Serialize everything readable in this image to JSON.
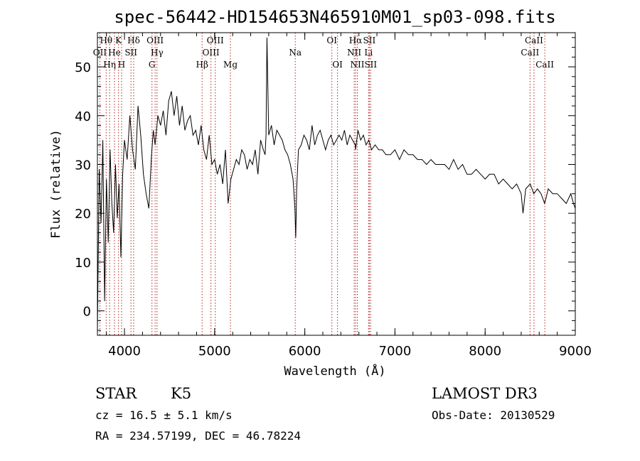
{
  "chart_data": {
    "type": "line",
    "title": "spec-56442-HD154653N465910M01_sp03-098.fits",
    "xlabel": "Wavelength (Å)",
    "ylabel": "Flux (relative)",
    "xlim": [
      3700,
      9000
    ],
    "ylim": [
      -5,
      57
    ],
    "xticks": [
      4000,
      5000,
      6000,
      7000,
      8000,
      9000
    ],
    "yticks": [
      0,
      10,
      20,
      30,
      40,
      50
    ],
    "line_color": "#000000",
    "marker_color": "#b22222",
    "series": [
      {
        "name": "flux",
        "x": [
          3700,
          3720,
          3740,
          3760,
          3780,
          3800,
          3820,
          3840,
          3860,
          3880,
          3900,
          3920,
          3940,
          3960,
          3980,
          4000,
          4030,
          4060,
          4090,
          4120,
          4150,
          4180,
          4210,
          4240,
          4270,
          4300,
          4320,
          4340,
          4370,
          4400,
          4430,
          4460,
          4490,
          4520,
          4550,
          4580,
          4610,
          4640,
          4670,
          4700,
          4730,
          4760,
          4790,
          4820,
          4850,
          4880,
          4910,
          4940,
          4970,
          5000,
          5030,
          5060,
          5090,
          5120,
          5150,
          5180,
          5210,
          5240,
          5270,
          5300,
          5330,
          5360,
          5390,
          5420,
          5450,
          5480,
          5510,
          5540,
          5560,
          5570,
          5580,
          5600,
          5630,
          5660,
          5690,
          5720,
          5750,
          5780,
          5810,
          5840,
          5870,
          5890,
          5900,
          5910,
          5930,
          5960,
          5990,
          6020,
          6050,
          6080,
          6110,
          6140,
          6170,
          6200,
          6230,
          6260,
          6290,
          6320,
          6350,
          6380,
          6410,
          6440,
          6470,
          6500,
          6530,
          6560,
          6563,
          6590,
          6620,
          6650,
          6680,
          6710,
          6740,
          6780,
          6820,
          6860,
          6900,
          6950,
          7000,
          7050,
          7100,
          7150,
          7200,
          7250,
          7300,
          7350,
          7400,
          7450,
          7500,
          7550,
          7600,
          7650,
          7700,
          7750,
          7800,
          7850,
          7900,
          7950,
          8000,
          8050,
          8100,
          8150,
          8200,
          8250,
          8300,
          8350,
          8400,
          8420,
          8450,
          8500,
          8540,
          8580,
          8620,
          8660,
          8700,
          8750,
          8800,
          8850,
          8900,
          8950,
          8980,
          9000
        ],
        "y": [
          -4,
          29,
          18,
          35,
          2,
          27,
          14,
          33,
          22,
          16,
          30,
          19,
          26,
          11,
          28,
          35,
          31,
          40,
          33,
          29,
          42,
          36,
          28,
          24,
          21,
          32,
          37,
          34,
          40,
          38,
          41,
          36,
          43,
          45,
          40,
          44,
          38,
          42,
          37,
          39,
          40,
          36,
          37,
          34,
          38,
          33,
          31,
          36,
          30,
          31,
          28,
          30,
          26,
          33,
          22,
          27,
          29,
          31,
          30,
          33,
          32,
          29,
          31,
          30,
          33,
          28,
          35,
          33,
          32,
          36,
          56,
          36,
          38,
          34,
          37,
          36,
          35,
          33,
          32,
          30,
          27,
          21,
          15,
          25,
          33,
          34,
          36,
          35,
          33,
          38,
          34,
          36,
          37,
          35,
          33,
          35,
          36,
          34,
          35,
          36,
          35,
          37,
          34,
          36,
          35,
          34,
          33,
          37,
          35,
          36,
          34,
          35,
          33,
          34,
          33,
          33,
          32,
          32,
          33,
          31,
          33,
          32,
          32,
          31,
          31,
          30,
          31,
          30,
          30,
          30,
          29,
          31,
          29,
          30,
          28,
          28,
          29,
          28,
          27,
          28,
          28,
          26,
          27,
          26,
          25,
          26,
          24,
          20,
          25,
          26,
          24,
          25,
          24,
          22,
          25,
          24,
          24,
          23,
          22,
          24,
          22,
          21
        ]
      }
    ],
    "lines": [
      {
        "label": "OII",
        "wave": 3727,
        "pos": "top",
        "row": 2
      },
      {
        "label": "Hθ",
        "wave": 3797,
        "pos": "top",
        "row": 1
      },
      {
        "label": "Hη",
        "wave": 3835,
        "pos": "top",
        "row": 3
      },
      {
        "label": "He",
        "wave": 3889,
        "pos": "top",
        "row": 2
      },
      {
        "label": "K",
        "wave": 3934,
        "pos": "top",
        "row": 1
      },
      {
        "label": "H",
        "wave": 3968,
        "pos": "top",
        "row": 3
      },
      {
        "label": "SII",
        "wave": 4072,
        "pos": "top",
        "row": 2
      },
      {
        "label": "Hδ",
        "wave": 4102,
        "pos": "top",
        "row": 1
      },
      {
        "label": "G",
        "wave": 4305,
        "pos": "top",
        "row": 3
      },
      {
        "label": "OIII",
        "wave": 4340,
        "pos": "top",
        "row": 1
      },
      {
        "label": "Hγ",
        "wave": 4361,
        "pos": "top",
        "row": 2
      },
      {
        "label": "Hβ",
        "wave": 4861,
        "pos": "top",
        "row": 3
      },
      {
        "label": "OIII",
        "wave": 4959,
        "pos": "top",
        "row": 2
      },
      {
        "label": "OIII",
        "wave": 5007,
        "pos": "top",
        "row": 1
      },
      {
        "label": "Mg",
        "wave": 5175,
        "pos": "top",
        "row": 3
      },
      {
        "label": "Na",
        "wave": 5894,
        "pos": "top",
        "row": 2
      },
      {
        "label": "OI",
        "wave": 6300,
        "pos": "top",
        "row": 1
      },
      {
        "label": "OI",
        "wave": 6363,
        "pos": "top",
        "row": 3
      },
      {
        "label": "NII",
        "wave": 6548,
        "pos": "top",
        "row": 2
      },
      {
        "label": "Hα",
        "wave": 6563,
        "pos": "top",
        "row": 1
      },
      {
        "label": "NII",
        "wave": 6583,
        "pos": "top",
        "row": 3
      },
      {
        "label": "Li",
        "wave": 6707,
        "pos": "top",
        "row": 2
      },
      {
        "label": "SII",
        "wave": 6716,
        "pos": "top",
        "row": 1
      },
      {
        "label": "SII",
        "wave": 6731,
        "pos": "top",
        "row": 3
      },
      {
        "label": "CaII",
        "wave": 8498,
        "pos": "top",
        "row": 2
      },
      {
        "label": "CaII",
        "wave": 8542,
        "pos": "top",
        "row": 1
      },
      {
        "label": "CaII",
        "wave": 8662,
        "pos": "top",
        "row": 3
      }
    ]
  },
  "info": {
    "class": "STAR",
    "subclass": "K5",
    "cz": "cz = 16.5 ± 5.1 km/s",
    "radec": "RA = 234.57199, DEC =  46.78224",
    "survey": "LAMOST DR3",
    "obsdate": "Obs-Date: 20130529"
  }
}
